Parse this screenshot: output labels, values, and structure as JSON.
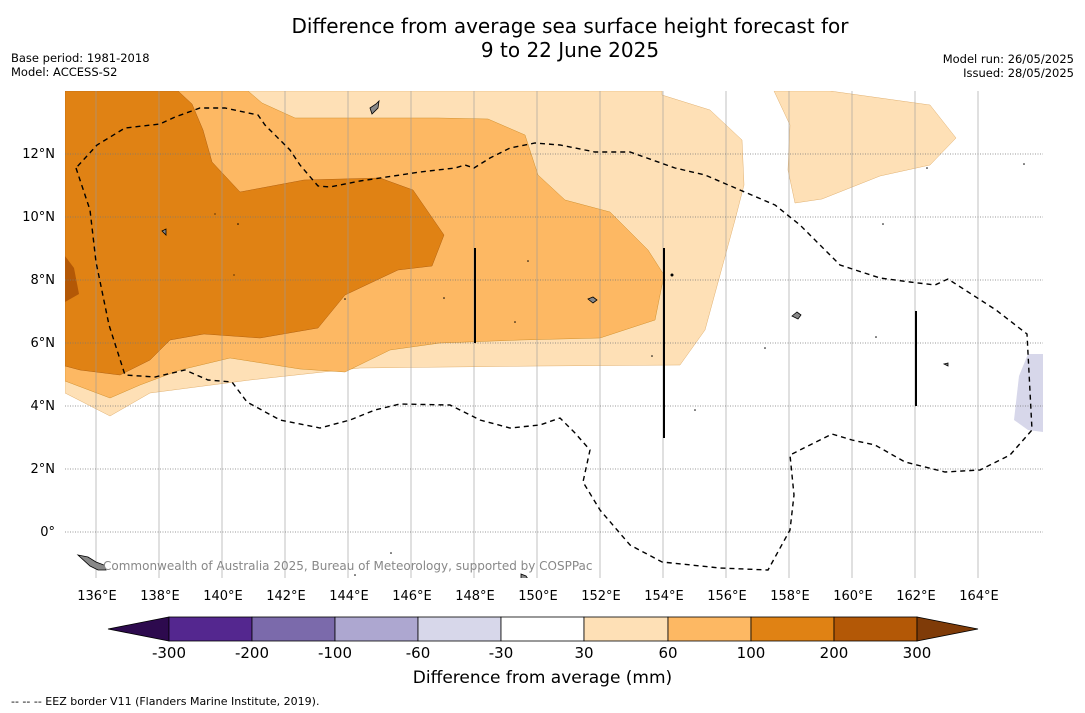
{
  "title_line1": "Difference from average sea surface height forecast for",
  "title_line2": "9 to 22 June 2025",
  "base_period": "Base period: 1981-2018",
  "model": "Model: ACCESS-S2",
  "model_run": "Model run: 26/05/2025",
  "issued": "Issued: 28/05/2025",
  "attribution": "Commonwealth of Australia 2025, Bureau of Meteorology, supported by COSPPac",
  "lon_labels": [
    "136°E",
    "138°E",
    "140°E",
    "142°E",
    "144°E",
    "146°E",
    "148°E",
    "150°E",
    "152°E",
    "154°E",
    "156°E",
    "158°E",
    "160°E",
    "162°E",
    "164°E"
  ],
  "lat_labels": [
    "12°N",
    "10°N",
    "8°N",
    "6°N",
    "4°N",
    "2°N",
    "0°"
  ],
  "colorbar": {
    "title": "Difference from average (mm)",
    "tick_labels": [
      "-300",
      "-200",
      "-100",
      "-60",
      "-30",
      "30",
      "60",
      "100",
      "200",
      "300"
    ],
    "colors": [
      "#2d0a4e",
      "#54278f",
      "#7b6aab",
      "#ada7d0",
      "#d7d7ea",
      "#ffffff",
      "#fee0b6",
      "#fdb863",
      "#e08214",
      "#b35806",
      "#7f3b08"
    ]
  },
  "eez_legend": "--  --  -- EEZ border V11 (Flanders Marine Institute, 2019)."
}
